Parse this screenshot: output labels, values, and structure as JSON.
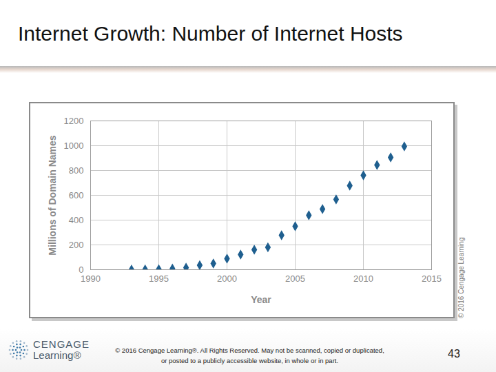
{
  "slide": {
    "title": "Internet Growth: Number of Internet Hosts",
    "logo": [
      "CENGAGE",
      "Learning®"
    ],
    "footer": "© 2016 Cengage Learning®. All Rights Reserved. May not be scanned, copied or duplicated, or posted to a publicly accessible website, in whole or in part.",
    "page": "43"
  },
  "chart_data": {
    "type": "scatter",
    "credit": "© 2016 Cengage Learning",
    "x_label": "Year",
    "y_label": "Millions of Domain Names",
    "x": [
      1993,
      1994,
      1995,
      1996,
      1997,
      1998,
      1999,
      2000,
      2001,
      2002,
      2003,
      2004,
      2005,
      2006,
      2007,
      2008,
      2009,
      2010,
      2011,
      2012,
      2013
    ],
    "values": [
      1,
      2,
      4,
      9,
      16,
      36,
      50,
      89,
      122,
      161,
      180,
      278,
      350,
      439,
      489,
      567,
      678,
      761,
      844,
      906,
      994
    ],
    "color": "#1f5f8f",
    "marker": "diamond",
    "xlim": [
      1990,
      2015
    ],
    "xticks": [
      1990,
      1995,
      2000,
      2005,
      2010,
      2015
    ],
    "ylim": [
      0,
      1200
    ],
    "yticks": [
      0,
      200,
      400,
      600,
      800,
      1000,
      1200
    ],
    "grid": true
  }
}
